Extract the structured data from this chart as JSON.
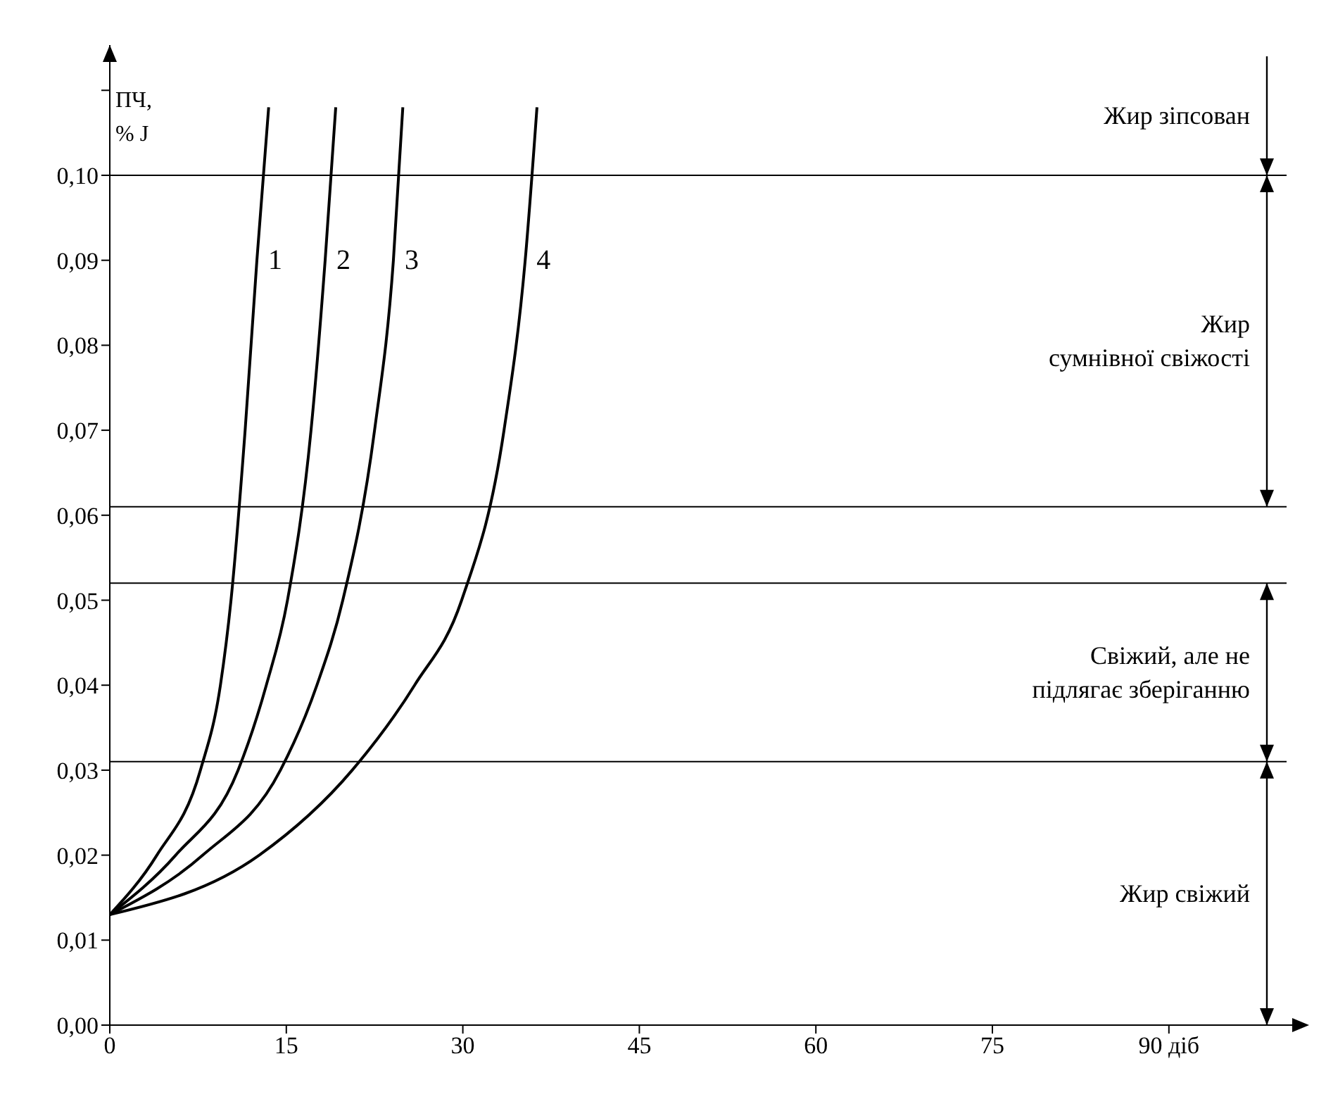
{
  "chart_data": {
    "type": "line",
    "ylabel": "ПЧ,\n% J",
    "xlim": [
      0,
      100
    ],
    "ylim": [
      0,
      0.114
    ],
    "xticks": [
      0,
      15,
      30,
      45,
      60,
      75,
      {
        "value": 90,
        "label": "90 діб"
      }
    ],
    "yticks": [
      {
        "value": 0,
        "label": "0,00"
      },
      {
        "value": 0.01,
        "label": "0,01"
      },
      {
        "value": 0.02,
        "label": "0,02"
      },
      {
        "value": 0.03,
        "label": "0,03"
      },
      {
        "value": 0.04,
        "label": "0,04"
      },
      {
        "value": 0.05,
        "label": "0,05"
      },
      {
        "value": 0.06,
        "label": "0,06"
      },
      {
        "value": 0.07,
        "label": "0,07"
      },
      {
        "value": 0.08,
        "label": "0,08"
      },
      {
        "value": 0.09,
        "label": "0,09"
      },
      {
        "value": 0.1,
        "label": "0,10"
      },
      {
        "value": 0.11,
        "label": null
      }
    ],
    "line_style": "solid",
    "ref_lines": [
      {
        "axis": "y",
        "value": 0.1,
        "color": "#000000"
      },
      {
        "axis": "y",
        "value": 0.061,
        "color": "#000000"
      },
      {
        "axis": "y",
        "value": 0.052,
        "color": "#000000"
      },
      {
        "axis": "y",
        "value": 0.031,
        "color": "#000000"
      }
    ],
    "annotations": [
      "Жир зіпсован",
      "Жир\nсумнівної свіжості",
      "Свіжий, але не\nпідлягає зберіганню",
      "Жир свіжий"
    ],
    "series": [
      {
        "name": "1",
        "color": "#000000",
        "x": [
          0,
          4,
          7.7,
          9.4,
          10.3,
          11.5,
          12.5,
          13.5
        ],
        "values": [
          0.013,
          0.02,
          0.03,
          0.04,
          0.05,
          0.07,
          0.09,
          0.108
        ]
      },
      {
        "name": "2",
        "color": "#000000",
        "x": [
          0,
          5.6,
          10.9,
          13.3,
          15.1,
          17.1,
          18.3,
          19.2
        ],
        "values": [
          0.013,
          0.02,
          0.03,
          0.04,
          0.05,
          0.07,
          0.09,
          0.108
        ]
      },
      {
        "name": "3",
        "color": "#000000",
        "x": [
          0,
          7.9,
          14.5,
          17.6,
          19.8,
          22.5,
          24.1,
          24.9
        ],
        "values": [
          0.013,
          0.02,
          0.03,
          0.04,
          0.05,
          0.07,
          0.09,
          0.108
        ]
      },
      {
        "name": "4",
        "color": "#000000",
        "x": [
          0,
          12.7,
          20.6,
          25.9,
          29.9,
          33.5,
          35.3,
          36.3
        ],
        "values": [
          0.013,
          0.02,
          0.03,
          0.04,
          0.05,
          0.07,
          0.09,
          0.108
        ]
      }
    ]
  }
}
